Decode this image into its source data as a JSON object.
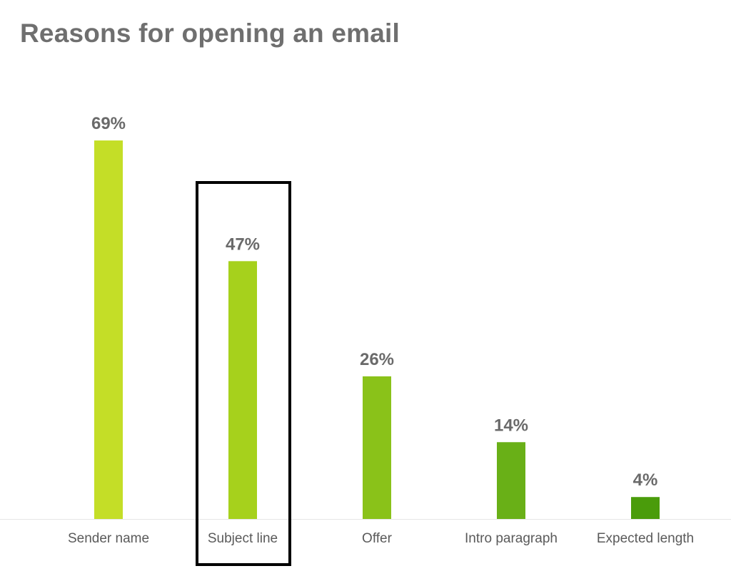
{
  "chart_data": {
    "type": "bar",
    "title": "Reasons for opening an email",
    "xlabel": "",
    "ylabel": "",
    "categories": [
      "Sender name",
      "Subject line",
      "Offer",
      "Intro paragraph",
      "Expected length"
    ],
    "values": [
      69,
      47,
      26,
      14,
      4
    ],
    "value_labels": [
      "69%",
      "47%",
      "26%",
      "14%",
      "4%"
    ],
    "unit": "%",
    "ylim": [
      0,
      80
    ],
    "grid": false,
    "legend": "none",
    "colors": [
      "#c4de27",
      "#a6d11c",
      "#8ac219",
      "#69b017",
      "#4a9c0b"
    ],
    "baseline_color": "#e6e6e6",
    "highlight": {
      "category": "Subject line",
      "style": "black outline box"
    }
  }
}
